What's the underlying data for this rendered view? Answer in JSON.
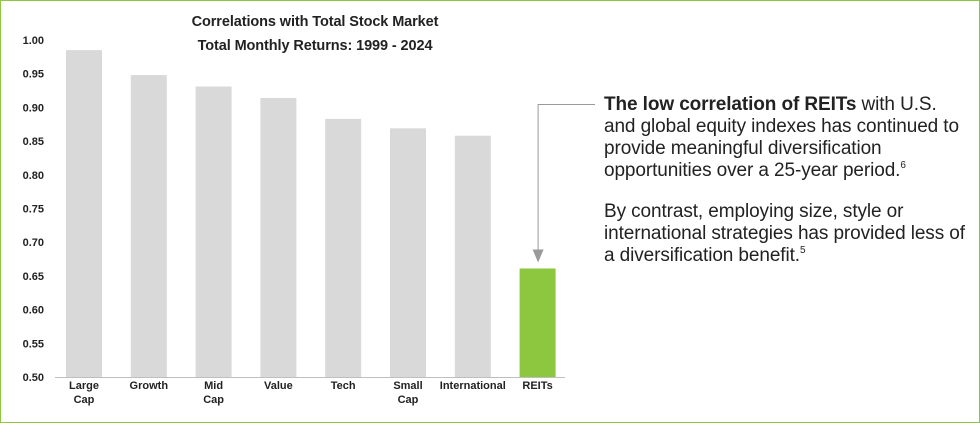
{
  "chart_data": {
    "type": "bar",
    "title": "Correlations with Total Stock Market",
    "subtitle": "Total Monthly Returns: 1999 - 2024",
    "categories": [
      [
        "Large",
        "Cap"
      ],
      [
        "Growth"
      ],
      [
        "Mid",
        "Cap"
      ],
      [
        "Value"
      ],
      [
        "Tech"
      ],
      [
        "Small",
        "Cap"
      ],
      [
        "International"
      ],
      [
        "REITs"
      ]
    ],
    "values": [
      0.985,
      0.948,
      0.931,
      0.914,
      0.883,
      0.869,
      0.858,
      0.661
    ],
    "ylim": [
      0.5,
      1.0
    ],
    "yticks": [
      "1.00",
      "0.95",
      "0.90",
      "0.85",
      "0.80",
      "0.75",
      "0.70",
      "0.65",
      "0.60",
      "0.55",
      "0.50"
    ],
    "grid": false,
    "colors": {
      "default": "#d9d9d9",
      "highlight": "#8dc63f",
      "axis": "#bfbfbf",
      "arrow": "#9a9a9a"
    },
    "highlight_category": "REITs"
  },
  "annotation": {
    "para1_bold": "The low correlation of REITs",
    "para1_rest": " with U.S. and global equity indexes has continued to provide meaningful diversification opportunities over a 25-year period.",
    "para1_sup": "6",
    "para2": "By contrast, employing size, style or international strategies has provided less of a diversification benefit.",
    "para2_sup": "5"
  }
}
